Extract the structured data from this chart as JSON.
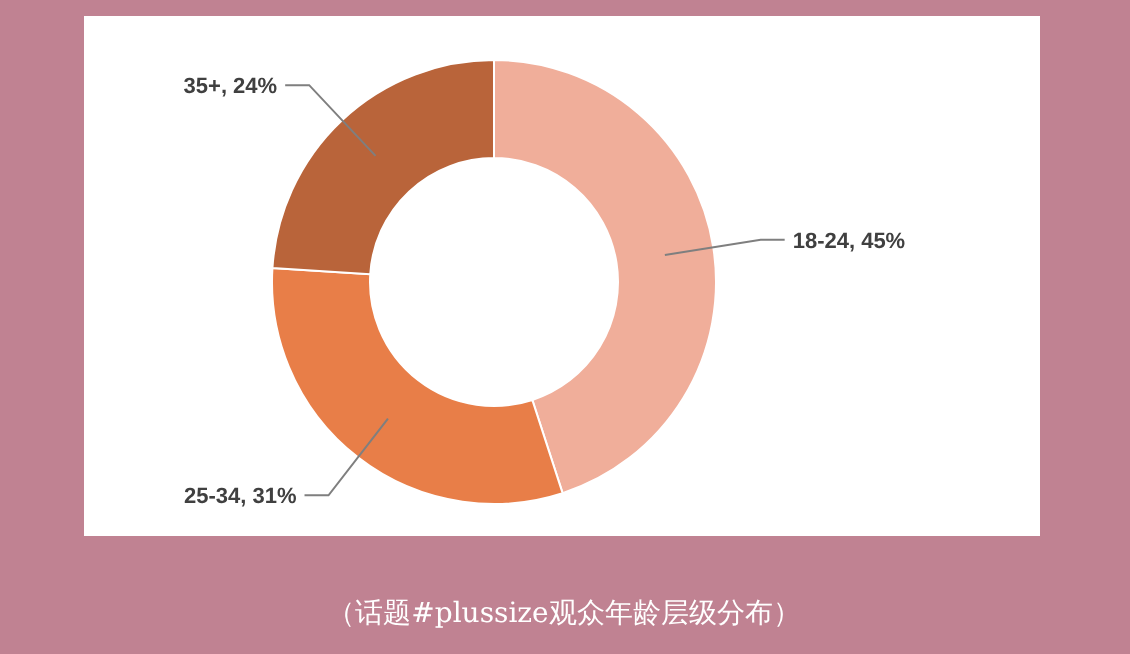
{
  "chart_data": {
    "type": "donut",
    "categories": [
      "18-24",
      "25-34",
      "35+"
    ],
    "values": [
      45,
      31,
      24
    ],
    "value_labels": [
      "45%",
      "31%",
      "24%"
    ],
    "colors": [
      "#f0ae9a",
      "#e87e48",
      "#b9643a"
    ],
    "legend": false,
    "annotations": [
      "（话题#plussize观众年龄层级分布）"
    ]
  }
}
